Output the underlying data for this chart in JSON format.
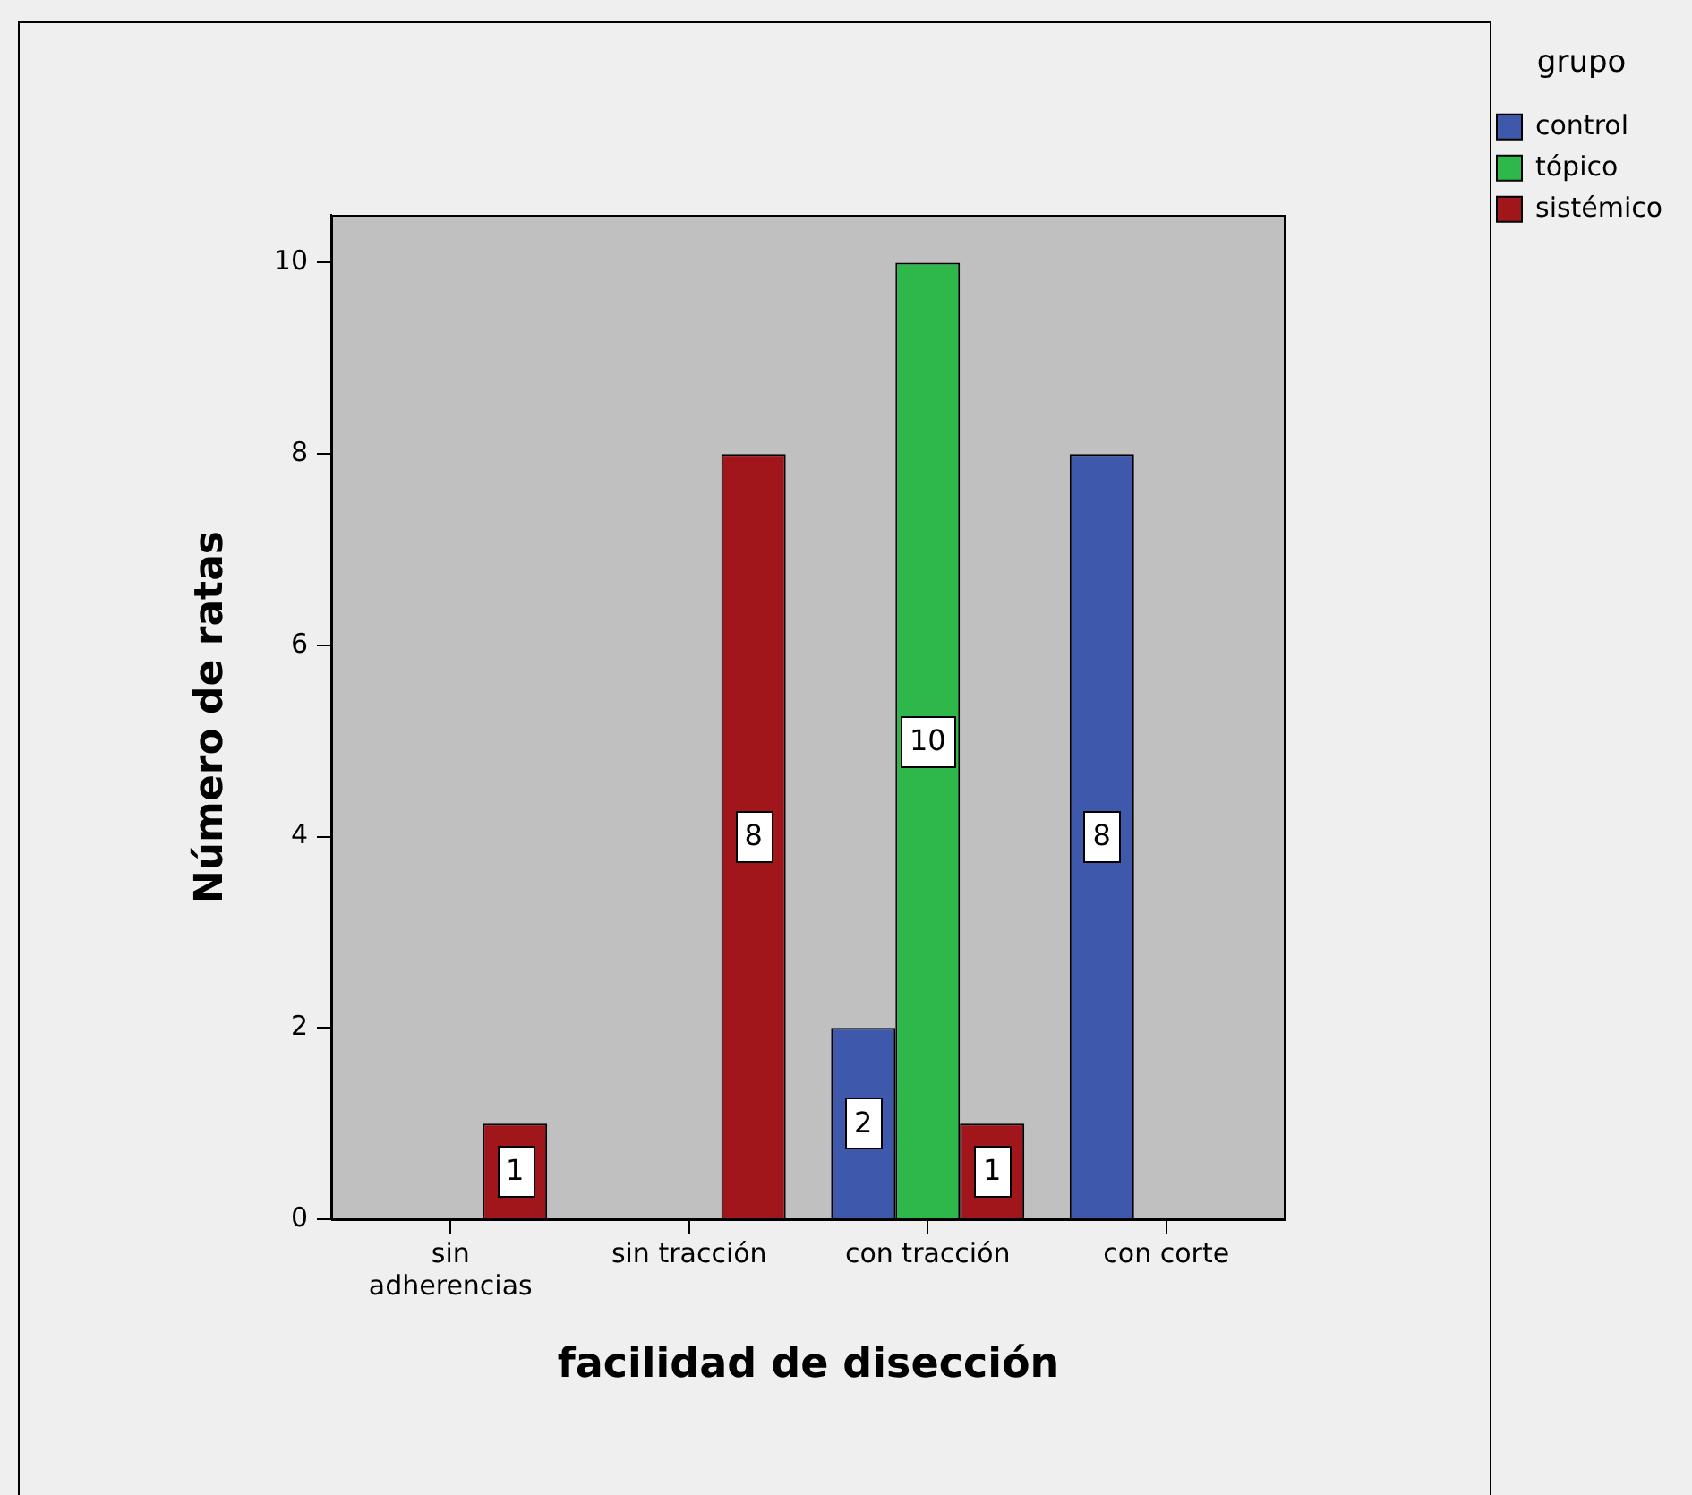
{
  "chart_data": {
    "type": "bar",
    "xlabel": "facilidad de disección",
    "ylabel": "Número de ratas",
    "legend_title": "grupo",
    "categories": [
      "sin adherencias",
      "sin tracción",
      "con tracción",
      "con corte"
    ],
    "series": [
      {
        "name": "control",
        "color": "#3e58ab",
        "values": [
          null,
          null,
          2,
          8
        ]
      },
      {
        "name": "tópico",
        "color": "#2fb84a",
        "values": [
          null,
          null,
          10,
          null
        ]
      },
      {
        "name": "sistémico",
        "color": "#a1161b",
        "values": [
          1,
          8,
          1,
          null
        ]
      }
    ],
    "ylim": [
      0,
      10.5
    ],
    "yticks": [
      0,
      2,
      4,
      6,
      8,
      10
    ],
    "grid": false,
    "legend": "top right",
    "data_labels": true
  }
}
